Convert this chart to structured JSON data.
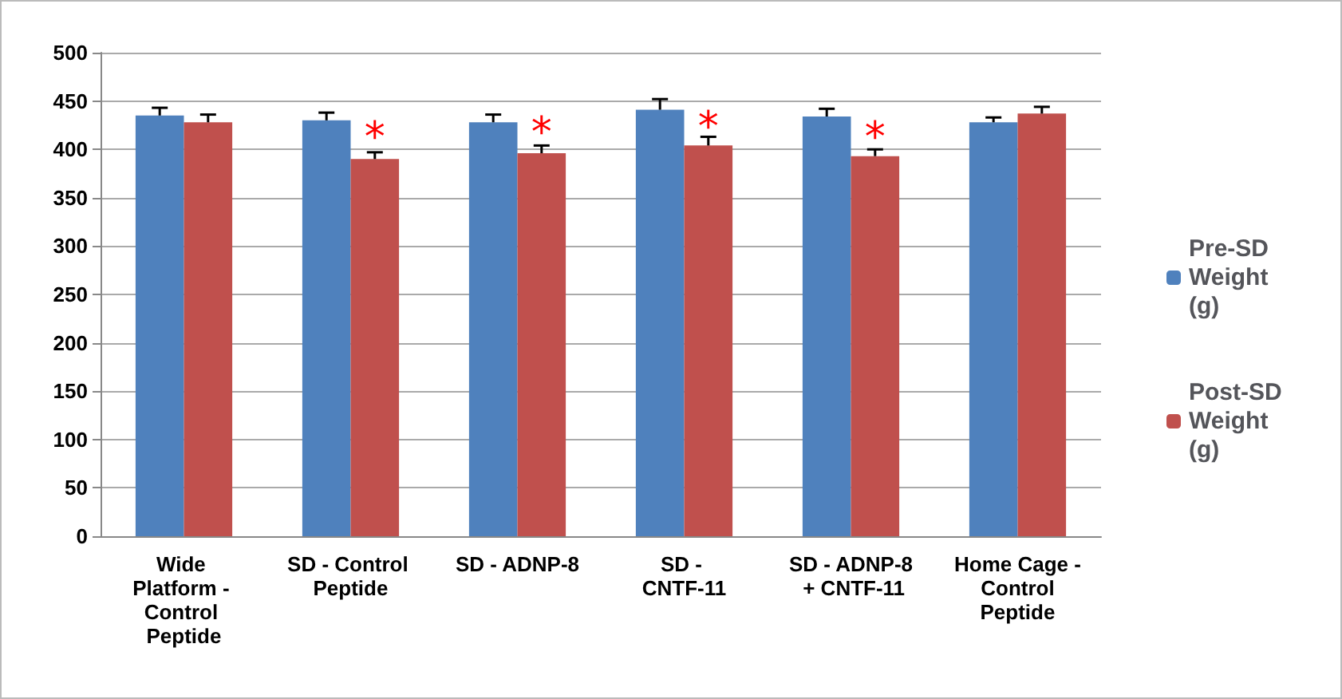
{
  "chart_data": {
    "type": "bar",
    "categories": [
      "Wide Platform - Control Peptide",
      "SD - Control Peptide",
      "SD - ADNP-8",
      "SD - CNTF-11",
      "SD - ADNP-8 + CNTF-11",
      "Home Cage - Control Peptide"
    ],
    "series": [
      {
        "name": "Pre-SD Weight (g)",
        "color": "#4f81bd",
        "values": [
          435,
          430,
          428,
          441,
          434,
          428
        ],
        "errors": [
          8,
          8,
          8,
          11,
          8,
          5
        ]
      },
      {
        "name": "Post-SD Weight (g)",
        "color": "#c0504d",
        "values": [
          428,
          390,
          396,
          404,
          393,
          437
        ],
        "errors": [
          8,
          7,
          8,
          9,
          7,
          7
        ]
      }
    ],
    "ylim": [
      0,
      500
    ],
    "yticks": [
      0,
      50,
      100,
      150,
      200,
      250,
      300,
      350,
      400,
      450,
      500
    ],
    "grid": "y",
    "legend": "right",
    "annotations": [
      {
        "text": "*",
        "x": "SD - Control Peptide",
        "y": 420
      },
      {
        "text": "*",
        "x": "SD - ADNP-8",
        "y": 425
      },
      {
        "text": "*",
        "x": "SD - CNTF-11",
        "y": 431
      },
      {
        "text": "*",
        "x": "SD - ADNP-8 + CNTF-11",
        "y": 420
      }
    ]
  }
}
